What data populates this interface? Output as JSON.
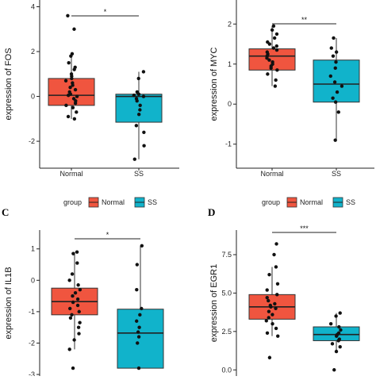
{
  "colors": {
    "normal": "#F0553F",
    "ss": "#11B3CB",
    "axis": "#222222",
    "point": "#111111"
  },
  "legend": {
    "title": "group",
    "items": [
      "Normal",
      "SS"
    ]
  },
  "chart_data": [
    {
      "type": "box",
      "panel_letter": "",
      "ylabel": "expression of FOS",
      "ylim": [
        -3.2,
        4.3
      ],
      "yticks": [
        -2,
        0,
        2,
        4
      ],
      "categories": [
        "Normal",
        "SS"
      ],
      "significance": "*",
      "boxes": [
        {
          "name": "Normal",
          "whisker_low": -1.0,
          "q1": -0.4,
          "median": 0.05,
          "q3": 0.8,
          "whisker_high": 1.9,
          "points": [
            3.6,
            3.0,
            1.9,
            1.8,
            1.5,
            1.3,
            1.2,
            1.0,
            0.9,
            0.8,
            0.7,
            0.6,
            0.5,
            0.4,
            0.3,
            0.2,
            0.1,
            0.05,
            0.0,
            -0.1,
            -0.2,
            -0.3,
            -0.4,
            -0.5,
            -0.7,
            -0.9,
            -1.0
          ]
        },
        {
          "name": "SS",
          "whisker_low": -2.8,
          "q1": -1.15,
          "median": 0.0,
          "q3": 0.1,
          "whisker_high": 1.1,
          "points": [
            1.1,
            0.8,
            0.2,
            0.1,
            0.05,
            0.0,
            -0.1,
            -0.2,
            -0.4,
            -0.6,
            -0.8,
            -1.3,
            -1.6,
            -2.2,
            -2.8
          ]
        }
      ]
    },
    {
      "type": "box",
      "panel_letter": "",
      "ylabel": "expression of MYC",
      "ylim": [
        -1.6,
        2.6
      ],
      "yticks": [
        -1,
        0,
        1,
        2
      ],
      "categories": [
        "Normal",
        "SS"
      ],
      "significance": "**",
      "boxes": [
        {
          "name": "Normal",
          "whisker_low": 0.45,
          "q1": 0.85,
          "median": 1.2,
          "q3": 1.38,
          "whisker_high": 1.95,
          "points": [
            1.95,
            1.85,
            1.75,
            1.65,
            1.55,
            1.5,
            1.45,
            1.4,
            1.35,
            1.3,
            1.25,
            1.2,
            1.15,
            1.1,
            1.05,
            1.0,
            0.95,
            0.9,
            0.85,
            0.75,
            0.6,
            0.45
          ]
        },
        {
          "name": "SS",
          "whisker_low": -0.9,
          "q1": 0.05,
          "median": 0.5,
          "q3": 1.1,
          "whisker_high": 1.65,
          "points": [
            1.65,
            1.4,
            1.3,
            1.2,
            1.05,
            0.9,
            0.7,
            0.55,
            0.45,
            0.3,
            0.15,
            0.05,
            -0.2,
            -0.9
          ]
        }
      ]
    },
    {
      "type": "box",
      "panel_letter": "C",
      "ylabel": "expression of IL1B",
      "ylim": [
        -3.05,
        1.6
      ],
      "yticks": [
        -3,
        -2,
        -1,
        0,
        1
      ],
      "categories": [
        "Normal",
        "SS"
      ],
      "significance": "*",
      "boxes": [
        {
          "name": "Normal",
          "whisker_low": -2.2,
          "q1": -1.1,
          "median": -0.68,
          "q3": -0.25,
          "whisker_high": 0.9,
          "points": [
            0.9,
            0.85,
            0.55,
            0.2,
            0.0,
            -0.15,
            -0.3,
            -0.4,
            -0.5,
            -0.6,
            -0.7,
            -0.8,
            -0.9,
            -1.0,
            -1.1,
            -1.2,
            -1.35,
            -1.5,
            -1.7,
            -1.9,
            -2.2,
            -2.8
          ]
        },
        {
          "name": "SS",
          "whisker_low": -2.8,
          "q1": -2.8,
          "median": -1.68,
          "q3": -0.92,
          "whisker_high": 1.1,
          "points": [
            1.1,
            0.5,
            -0.3,
            -0.9,
            -1.1,
            -1.3,
            -1.5,
            -1.65,
            -1.8,
            -2.0,
            -2.8
          ]
        }
      ]
    },
    {
      "type": "box",
      "panel_letter": "D",
      "ylabel": "expression of EGR1",
      "ylim": [
        -0.4,
        9.1
      ],
      "yticks": [
        0.0,
        2.5,
        5.0,
        7.5
      ],
      "ytick_labels": [
        "0.0",
        "2.5",
        "5.0",
        "7.5"
      ],
      "categories": [
        "Normal",
        "SS"
      ],
      "significance": "***",
      "boxes": [
        {
          "name": "Normal",
          "whisker_low": 2.2,
          "q1": 3.3,
          "median": 4.1,
          "q3": 4.9,
          "whisker_high": 6.7,
          "points": [
            8.2,
            7.5,
            6.7,
            6.2,
            5.6,
            5.2,
            4.9,
            4.7,
            4.5,
            4.3,
            4.2,
            4.1,
            4.0,
            3.8,
            3.6,
            3.4,
            3.2,
            3.0,
            2.7,
            2.4,
            2.2,
            0.8
          ]
        },
        {
          "name": "SS",
          "whisker_low": 1.2,
          "q1": 1.9,
          "median": 2.3,
          "q3": 2.8,
          "whisker_high": 3.7,
          "points": [
            3.7,
            3.5,
            3.0,
            2.8,
            2.6,
            2.4,
            2.3,
            2.2,
            2.0,
            1.9,
            1.7,
            1.5,
            1.2,
            0.0
          ]
        }
      ]
    }
  ]
}
